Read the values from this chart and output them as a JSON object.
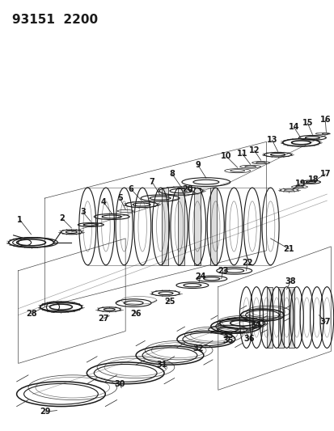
{
  "title": "93151  2200",
  "bg_color": "#ffffff",
  "line_color": "#1a1a1a",
  "title_fontsize": 11,
  "label_fontsize": 6.5,
  "fig_width": 4.14,
  "fig_height": 5.33,
  "dpi": 100
}
